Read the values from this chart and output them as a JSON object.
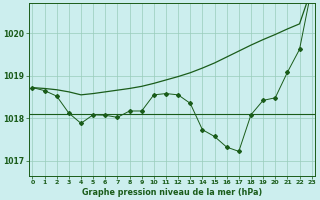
{
  "bg_color": "#cceeee",
  "grid_color": "#99ccbb",
  "line_color": "#1a5c1a",
  "xlabel": "Graphe pression niveau de la mer (hPa)",
  "xlabel_color": "#1a5c1a",
  "ylabel_ticks": [
    1017,
    1018,
    1019,
    1020
  ],
  "xlim": [
    -0.3,
    23.3
  ],
  "ylim": [
    1016.65,
    1020.7
  ],
  "flat_line_y": 1018.1,
  "smooth_x": [
    0,
    1,
    2,
    3,
    4,
    5,
    6,
    7,
    8,
    9,
    10,
    11,
    12,
    13,
    14,
    15,
    16,
    17,
    18,
    19,
    20,
    21,
    22,
    23
  ],
  "smooth_y": [
    1018.72,
    1018.7,
    1018.67,
    1018.62,
    1018.55,
    1018.58,
    1018.62,
    1018.66,
    1018.7,
    1018.75,
    1018.82,
    1018.9,
    1018.98,
    1019.07,
    1019.18,
    1019.3,
    1019.44,
    1019.58,
    1019.72,
    1019.85,
    1019.97,
    1020.1,
    1020.22,
    1021.05
  ],
  "detail_x": [
    0,
    1,
    2,
    3,
    4,
    5,
    6,
    7,
    8,
    9,
    10,
    11,
    12,
    13,
    14,
    15,
    16,
    17,
    18,
    19,
    20,
    21,
    22,
    23
  ],
  "detail_y": [
    1018.72,
    1018.65,
    1018.52,
    1018.12,
    1017.88,
    1018.08,
    1018.07,
    1018.02,
    1018.17,
    1018.17,
    1018.55,
    1018.58,
    1018.55,
    1018.35,
    1017.73,
    1017.57,
    1017.32,
    1017.22,
    1018.08,
    1018.42,
    1018.48,
    1019.08,
    1019.62,
    1021.05
  ],
  "figsize": [
    3.2,
    2.0
  ],
  "dpi": 100
}
